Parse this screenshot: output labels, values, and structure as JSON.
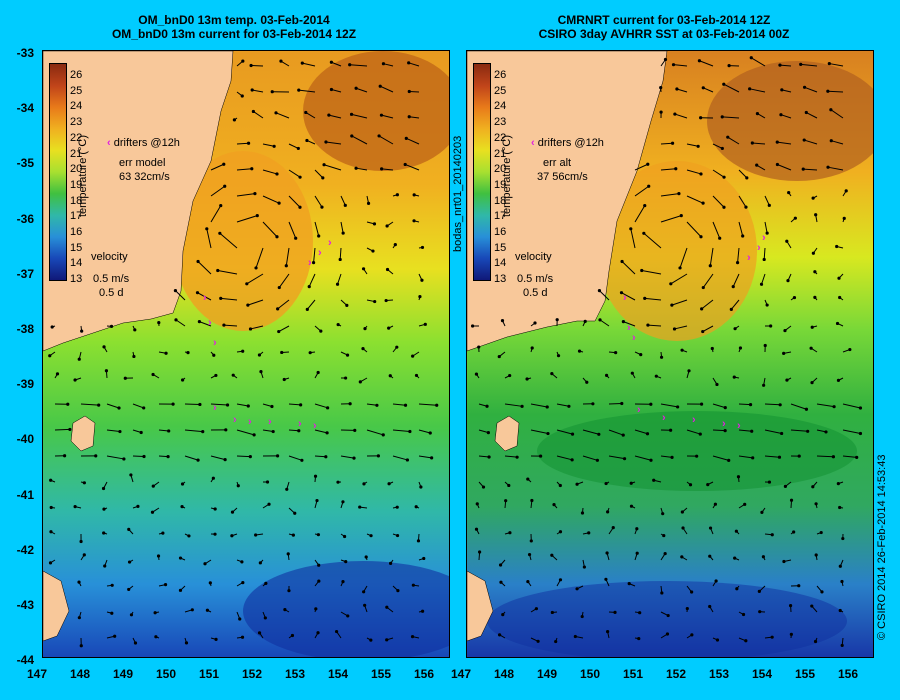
{
  "left_panel": {
    "title_line1": "OM_bnD0 13m temp. 03-Feb-2014",
    "title_line2": "OM_bnD0 13m current for 03-Feb-2014 12Z",
    "drifters_label": "drifters @12h",
    "err_label": "err model",
    "err_value": "63 32cm/s",
    "velocity_label": "velocity",
    "velocity_scale": "0.5 m/s",
    "velocity_time": "0.5 d",
    "side_label": "bodas_nrt01_20140203"
  },
  "right_panel": {
    "title_line1": "CMRNRT current for 03-Feb-2014 12Z",
    "title_line2": "CSIRO 3day AVHRR SST at 03-Feb-2014 00Z",
    "drifters_label": "drifters @12h",
    "err_label": "err alt",
    "err_value": "37 56cm/s",
    "velocity_label": "velocity",
    "velocity_scale": "0.5 m/s",
    "velocity_time": "0.5 d"
  },
  "colorbar": {
    "ticks": [
      "26",
      "25",
      "24",
      "23",
      "22",
      "21",
      "20",
      "19",
      "18",
      "17",
      "16",
      "15",
      "14",
      "13"
    ],
    "label": "temperature (°C)"
  },
  "axes": {
    "y_ticks": [
      "-33",
      "-34",
      "-35",
      "-36",
      "-37",
      "-38",
      "-39",
      "-40",
      "-41",
      "-42",
      "-43",
      "-44"
    ],
    "x_ticks": [
      "147",
      "148",
      "149",
      "150",
      "151",
      "152",
      "153",
      "154",
      "155",
      "156"
    ]
  },
  "credit": "© CSIRO 2014   26-Feb-2014 14:53:43",
  "colors": {
    "background": "#00ccff",
    "land": "#f8c89a",
    "drifter": "#e020e0"
  }
}
